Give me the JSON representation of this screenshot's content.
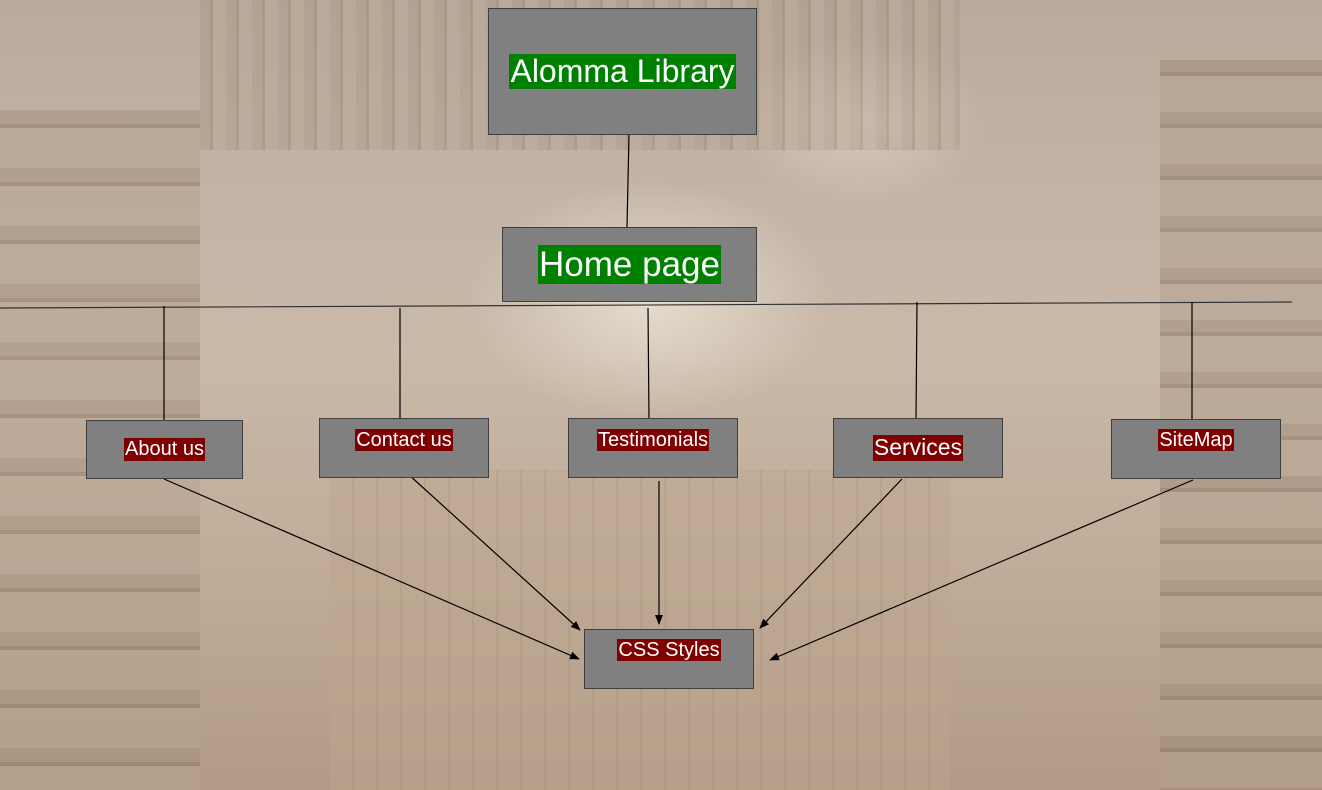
{
  "diagram": {
    "root": {
      "label": "Alomma Library"
    },
    "home": {
      "label": "Home page"
    },
    "pages": [
      {
        "label": "About us"
      },
      {
        "label": "Contact us"
      },
      {
        "label": "Testimonials"
      },
      {
        "label": "Services"
      },
      {
        "label": "SiteMap"
      }
    ],
    "stylesheet": {
      "label": "CSS Styles"
    }
  },
  "colors": {
    "node_fill": "#808080",
    "title_label_fill": "#008000",
    "page_label_fill": "#7f0000",
    "label_text": "#ffffff",
    "connector": "#000000"
  }
}
